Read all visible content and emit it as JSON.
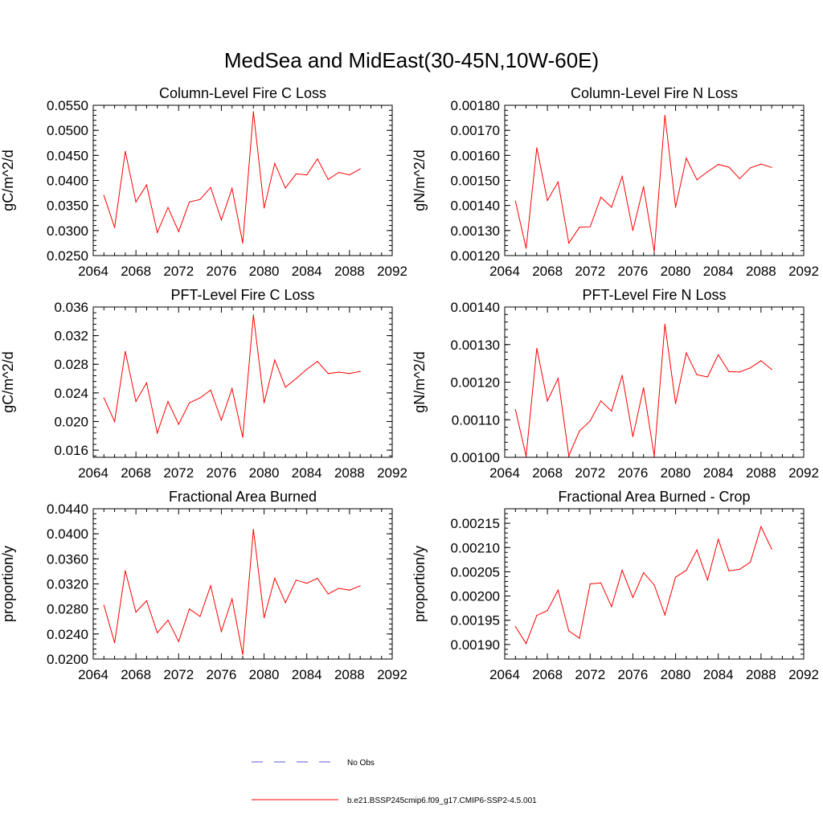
{
  "page": {
    "title": "MedSea and MidEast(30-45N,10W-60E)"
  },
  "legend": {
    "entries": [
      {
        "label": "No Obs",
        "color": "#5a5ad8",
        "style": "dashed"
      },
      {
        "label": "b.e21.BSSP245cmip6.f09_g17.CMIP6-SSP2-4.5.001",
        "color": "#ff0000",
        "style": "solid"
      }
    ]
  },
  "chart_data": [
    {
      "type": "line",
      "title": "Column-Level Fire C Loss",
      "ylabel": "gC/m^2/d",
      "xlim": [
        2064,
        2092
      ],
      "ylim": [
        0.025,
        0.055
      ],
      "xticks": [
        "2064",
        "2068",
        "2072",
        "2076",
        "2080",
        "2084",
        "2088",
        "2092"
      ],
      "yticks": [
        "0.0250",
        "0.0300",
        "0.0350",
        "0.0400",
        "0.0450",
        "0.0500",
        "0.0550"
      ],
      "series": [
        {
          "name": "b.e21.BSSP245cmip6.f09_g17.CMIP6-SSP2-4.5.001",
          "color": "#ff0000",
          "x": [
            2065,
            2066,
            2067,
            2068,
            2069,
            2070,
            2071,
            2072,
            2073,
            2074,
            2075,
            2076,
            2077,
            2078,
            2079,
            2080,
            2081,
            2082,
            2083,
            2084,
            2085,
            2086,
            2087,
            2088,
            2089
          ],
          "values": [
            0.037,
            0.0306,
            0.0458,
            0.0357,
            0.0391,
            0.0296,
            0.0346,
            0.0298,
            0.0357,
            0.0362,
            0.0386,
            0.0321,
            0.0384,
            0.0275,
            0.0537,
            0.0345,
            0.0434,
            0.0385,
            0.0413,
            0.0411,
            0.0443,
            0.0402,
            0.0416,
            0.0411,
            0.0423
          ]
        }
      ]
    },
    {
      "type": "line",
      "title": "Column-Level Fire N Loss",
      "ylabel": "gN/m^2/d",
      "xlim": [
        2064,
        2092
      ],
      "ylim": [
        0.0012,
        0.0018
      ],
      "xticks": [
        "2064",
        "2068",
        "2072",
        "2076",
        "2080",
        "2084",
        "2088",
        "2092"
      ],
      "yticks": [
        "0.00120",
        "0.00130",
        "0.00140",
        "0.00150",
        "0.00160",
        "0.00170",
        "0.00180"
      ],
      "series": [
        {
          "name": "b.e21.BSSP245cmip6.f09_g17.CMIP6-SSP2-4.5.001",
          "color": "#ff0000",
          "x": [
            2065,
            2066,
            2067,
            2068,
            2069,
            2070,
            2071,
            2072,
            2073,
            2074,
            2075,
            2076,
            2077,
            2078,
            2079,
            2080,
            2081,
            2082,
            2083,
            2084,
            2085,
            2086,
            2087,
            2088,
            2089
          ],
          "values": [
            0.001418,
            0.001229,
            0.00163,
            0.00142,
            0.001494,
            0.00125,
            0.001313,
            0.001315,
            0.001433,
            0.001393,
            0.001516,
            0.0013,
            0.001475,
            0.001215,
            0.00176,
            0.001393,
            0.001589,
            0.001503,
            0.001535,
            0.001564,
            0.001553,
            0.001507,
            0.00155,
            0.001565,
            0.001552
          ]
        }
      ]
    },
    {
      "type": "line",
      "title": "PFT-Level Fire C Loss",
      "ylabel": "gC/m^2/d",
      "xlim": [
        2064,
        2092
      ],
      "ylim": [
        0.015,
        0.036
      ],
      "xticks": [
        "2064",
        "2068",
        "2072",
        "2076",
        "2080",
        "2084",
        "2088",
        "2092"
      ],
      "yticks": [
        "0.016",
        "0.020",
        "0.024",
        "0.028",
        "0.032",
        "0.036"
      ],
      "series": [
        {
          "name": "b.e21.BSSP245cmip6.f09_g17.CMIP6-SSP2-4.5.001",
          "color": "#ff0000",
          "x": [
            2065,
            2066,
            2067,
            2068,
            2069,
            2070,
            2071,
            2072,
            2073,
            2074,
            2075,
            2076,
            2077,
            2078,
            2079,
            2080,
            2081,
            2082,
            2083,
            2084,
            2085,
            2086,
            2087,
            2088,
            2089
          ],
          "values": [
            0.0233,
            0.02,
            0.0298,
            0.0228,
            0.0254,
            0.0184,
            0.0228,
            0.0196,
            0.0226,
            0.0233,
            0.0244,
            0.0202,
            0.0246,
            0.0178,
            0.0349,
            0.0226,
            0.0286,
            0.0248,
            0.026,
            0.0273,
            0.0284,
            0.0267,
            0.0269,
            0.0267,
            0.027
          ]
        }
      ]
    },
    {
      "type": "line",
      "title": "PFT-Level Fire N Loss",
      "ylabel": "gN/m^2/d",
      "xlim": [
        2064,
        2092
      ],
      "ylim": [
        0.001,
        0.0014
      ],
      "xticks": [
        "2064",
        "2068",
        "2072",
        "2076",
        "2080",
        "2084",
        "2088",
        "2092"
      ],
      "yticks": [
        "0.00100",
        "0.00110",
        "0.00120",
        "0.00130",
        "0.00140"
      ],
      "series": [
        {
          "name": "b.e21.BSSP245cmip6.f09_g17.CMIP6-SSP2-4.5.001",
          "color": "#ff0000",
          "x": [
            2065,
            2066,
            2067,
            2068,
            2069,
            2070,
            2071,
            2072,
            2073,
            2074,
            2075,
            2076,
            2077,
            2078,
            2079,
            2080,
            2081,
            2082,
            2083,
            2084,
            2085,
            2086,
            2087,
            2088,
            2089
          ],
          "values": [
            0.001127,
            0.001003,
            0.00129,
            0.00115,
            0.00121,
            0.001004,
            0.00107,
            0.001097,
            0.00115,
            0.001123,
            0.001218,
            0.001055,
            0.001185,
            0.001003,
            0.001354,
            0.001143,
            0.001278,
            0.00122,
            0.001214,
            0.001273,
            0.001228,
            0.001227,
            0.001238,
            0.001257,
            0.001234
          ]
        }
      ]
    },
    {
      "type": "line",
      "title": "Fractional Area Burned",
      "ylabel": "proportion/y",
      "xlim": [
        2064,
        2092
      ],
      "ylim": [
        0.02,
        0.044
      ],
      "xticks": [
        "2064",
        "2068",
        "2072",
        "2076",
        "2080",
        "2084",
        "2088",
        "2092"
      ],
      "yticks": [
        "0.0200",
        "0.0240",
        "0.0280",
        "0.0320",
        "0.0360",
        "0.0400",
        "0.0440"
      ],
      "series": [
        {
          "name": "b.e21.BSSP245cmip6.f09_g17.CMIP6-SSP2-4.5.001",
          "color": "#ff0000",
          "x": [
            2065,
            2066,
            2067,
            2068,
            2069,
            2070,
            2071,
            2072,
            2073,
            2074,
            2075,
            2076,
            2077,
            2078,
            2079,
            2080,
            2081,
            2082,
            2083,
            2084,
            2085,
            2086,
            2087,
            2088,
            2089
          ],
          "values": [
            0.0286,
            0.0226,
            0.0341,
            0.0275,
            0.0293,
            0.0242,
            0.0262,
            0.0228,
            0.028,
            0.0268,
            0.0317,
            0.0244,
            0.0296,
            0.0207,
            0.0407,
            0.0266,
            0.0329,
            0.029,
            0.0326,
            0.0321,
            0.0329,
            0.0304,
            0.0313,
            0.031,
            0.0317
          ]
        }
      ]
    },
    {
      "type": "line",
      "title": "Fractional Area Burned - Crop",
      "ylabel": "proportion/y",
      "xlim": [
        2064,
        2092
      ],
      "ylim": [
        0.00187,
        0.00218
      ],
      "xticks": [
        "2064",
        "2068",
        "2072",
        "2076",
        "2080",
        "2084",
        "2088",
        "2092"
      ],
      "yticks": [
        "0.00190",
        "0.00195",
        "0.00200",
        "0.00205",
        "0.00210",
        "0.00215"
      ],
      "series": [
        {
          "name": "b.e21.BSSP245cmip6.f09_g17.CMIP6-SSP2-4.5.001",
          "color": "#ff0000",
          "x": [
            2065,
            2066,
            2067,
            2068,
            2069,
            2070,
            2071,
            2072,
            2073,
            2074,
            2075,
            2076,
            2077,
            2078,
            2079,
            2080,
            2081,
            2082,
            2083,
            2084,
            2085,
            2086,
            2087,
            2088,
            2089
          ],
          "values": [
            0.001937,
            0.001902,
            0.00196,
            0.00197,
            0.002012,
            0.001928,
            0.001913,
            0.002025,
            0.002027,
            0.001978,
            0.002053,
            0.001997,
            0.002048,
            0.002023,
            0.001961,
            0.002039,
            0.002053,
            0.002095,
            0.002033,
            0.002117,
            0.002052,
            0.002055,
            0.00207,
            0.002143,
            0.002097
          ]
        }
      ]
    }
  ]
}
